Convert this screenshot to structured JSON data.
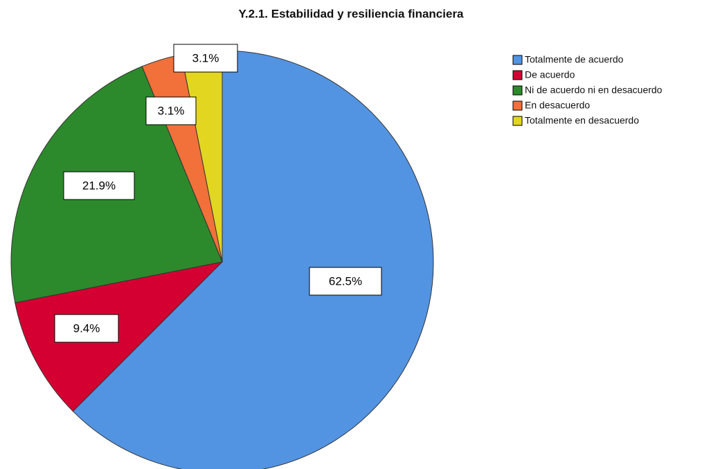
{
  "chart_data": {
    "type": "pie",
    "title": "Y.2.1. Estabilidad y resiliencia financiera",
    "categories": [
      "Totalmente de acuerdo",
      "De acuerdo",
      "Ni de acuerdo ni en desacuerdo",
      "En desacuerdo",
      "Totalmente en desacuerdo"
    ],
    "values": [
      62.5,
      9.4,
      21.9,
      3.1,
      3.1
    ],
    "value_labels": [
      "62.5%",
      "9.4%",
      "21.9%",
      "3.1%",
      "3.1%"
    ],
    "colors": [
      "#5294e2",
      "#d50032",
      "#2c8a2c",
      "#f2703a",
      "#e2d620"
    ],
    "legend": "top-right"
  }
}
